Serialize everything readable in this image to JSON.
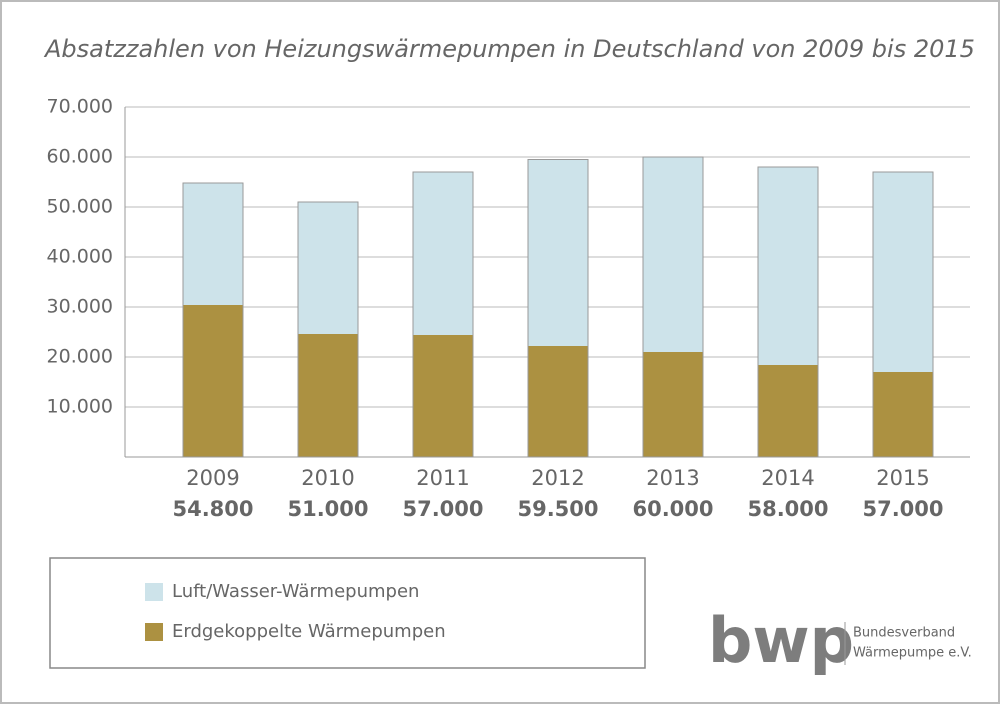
{
  "chart_data": {
    "type": "stacked_bar",
    "title": "Absatzzahlen von Heizungswärmepumpen in Deutschland von 2009 bis 2015",
    "categories": [
      "2009",
      "2010",
      "2011",
      "2012",
      "2013",
      "2014",
      "2015"
    ],
    "series": [
      {
        "name": "Erdgekoppelte Wärmepumpen",
        "color": "#ac9141",
        "values": [
          30400,
          24600,
          24400,
          22200,
          21000,
          18400,
          17000
        ]
      },
      {
        "name": "Luft/Wasser-Wärmepumpen",
        "color": "#cde3ea",
        "values": [
          24400,
          26400,
          32600,
          37300,
          39000,
          39600,
          40000
        ]
      }
    ],
    "totals": {
      "values": [
        54800,
        51000,
        57000,
        59500,
        60000,
        58000,
        57000
      ],
      "value_labels": [
        "54.800",
        "51.000",
        "57.000",
        "59.500",
        "60.000",
        "58.000",
        "57.000"
      ]
    },
    "ylim": [
      0,
      70000
    ],
    "yticks": [
      {
        "value": 10000,
        "label": "10.000"
      },
      {
        "value": 20000,
        "label": "20.000"
      },
      {
        "value": 30000,
        "label": "30.000"
      },
      {
        "value": 40000,
        "label": "40.000"
      },
      {
        "value": 50000,
        "label": "50.000"
      },
      {
        "value": 60000,
        "label": "60.000"
      },
      {
        "value": 70000,
        "label": "70.000"
      }
    ],
    "grid": true
  },
  "logo": {
    "mark": "bwp",
    "lines": [
      "Bundesverband",
      "Wärmepumpe e.V."
    ]
  }
}
